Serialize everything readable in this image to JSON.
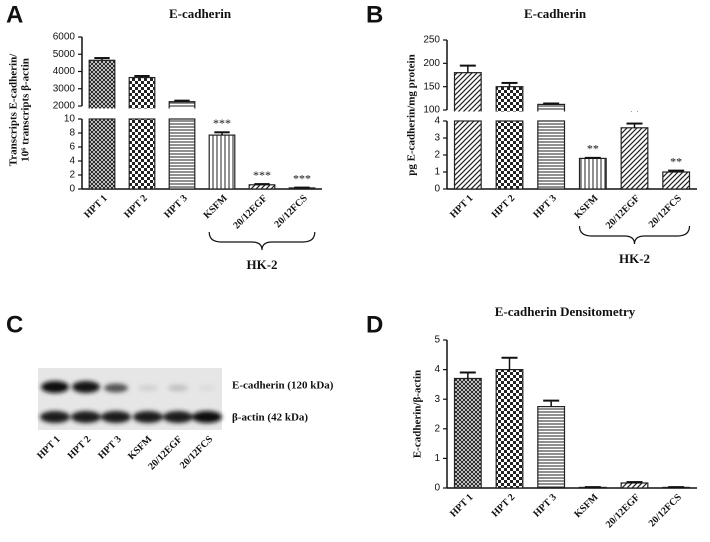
{
  "chart_data": [
    {
      "type": "bar",
      "panel_label": "A",
      "title": "E-cadherin",
      "ylabel": [
        "Transcripts E-cadherin/",
        "10⁶ transcripts β-actin"
      ],
      "categories": [
        "HPT 1",
        "HPT 2",
        "HPT 3",
        "KSFM",
        "20/12EGF",
        "20/12FCS"
      ],
      "values": [
        4650,
        3650,
        2250,
        7.7,
        0.6,
        0.15
      ],
      "errors": [
        130,
        90,
        60,
        0.4,
        0.1,
        0.05
      ],
      "value_annotations": [
        null,
        null,
        null,
        "***",
        "***",
        "***"
      ],
      "category_groups": [
        null,
        null,
        null,
        "HK-2",
        "HK-2",
        "HK-2"
      ],
      "patterns": [
        "crosshatch",
        "checker",
        "horizontal",
        "vertical",
        "diagonal",
        "diagonal"
      ],
      "color": "#222222",
      "y_segments": [
        {
          "ylim": [
            0,
            10
          ],
          "yticks": [
            0,
            2,
            4,
            6,
            8,
            10
          ]
        },
        {
          "ylim": [
            2000,
            6000
          ],
          "yticks": [
            2000,
            3000,
            4000,
            5000,
            6000
          ]
        }
      ]
    },
    {
      "type": "bar",
      "panel_label": "B",
      "title": "E-cadherin",
      "ylabel": [
        "pg E-cadherin/mg protein"
      ],
      "categories": [
        "HPT 1",
        "HPT 2",
        "HPT 3",
        "KSFM",
        "20/12EGF",
        "20/12FCS"
      ],
      "values": [
        180,
        150,
        112,
        1.8,
        3.6,
        1.0
      ],
      "errors": [
        15,
        8,
        2,
        0.03,
        0.25,
        0.08
      ],
      "value_annotations": [
        null,
        null,
        null,
        "**",
        "**",
        "**"
      ],
      "category_groups": [
        null,
        null,
        null,
        "HK-2",
        "HK-2",
        "HK-2"
      ],
      "patterns": [
        "diagonal",
        "checker",
        "horizontal",
        "vertical",
        "diagonal",
        "diagonal"
      ],
      "color": "#222222",
      "y_segments": [
        {
          "ylim": [
            0,
            4
          ],
          "yticks": [
            0,
            1,
            2,
            3,
            4
          ]
        },
        {
          "ylim": [
            100,
            250
          ],
          "yticks": [
            100,
            150,
            200,
            250
          ]
        }
      ]
    },
    {
      "type": "bar",
      "panel_label": "D",
      "title": "E-cadherin Densitometry",
      "ylabel": [
        "E-cadherin/β-actin"
      ],
      "categories": [
        "HPT 1",
        "HPT 2",
        "HPT 3",
        "KSFM",
        "20/12EGF",
        "20/12FCS"
      ],
      "values": [
        3.7,
        4.0,
        2.75,
        0.02,
        0.17,
        0.02
      ],
      "errors": [
        0.2,
        0.4,
        0.2,
        0.01,
        0.03,
        0.01
      ],
      "patterns": [
        "crosshatch",
        "checker",
        "horizontal",
        "vertical",
        "diagonal",
        "diagonal"
      ],
      "color": "#222222",
      "ylim": [
        0,
        5
      ],
      "yticks": [
        0,
        1,
        2,
        3,
        4,
        5
      ]
    }
  ],
  "blot": {
    "panel_label": "C",
    "lanes": [
      "HPT 1",
      "HPT 2",
      "HPT 3",
      "KSFM",
      "20/12EGF",
      "20/12FCS"
    ],
    "bands": [
      "E-cadherin (120 kDa)",
      "β-actin (42 kDa)"
    ]
  }
}
